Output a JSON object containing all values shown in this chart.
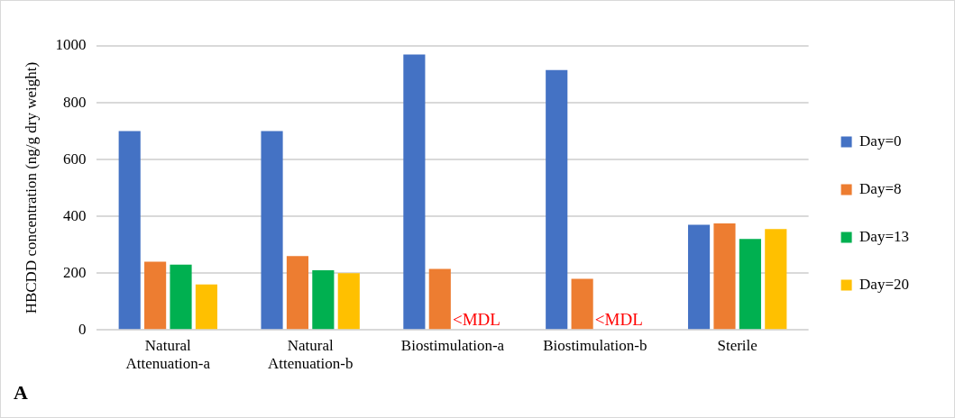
{
  "chart_data": {
    "type": "bar",
    "ylabel": "HBCDD concentration (ng/g dry weight)",
    "categories": [
      "Natural Attenuation-a",
      "Natural Attenuation-b",
      "Biostimulation-a",
      "Biostimulation-b",
      "Sterile"
    ],
    "series": [
      {
        "name": "Day=0",
        "color": "#4472c4",
        "values": [
          700,
          700,
          970,
          915,
          370
        ]
      },
      {
        "name": "Day=8",
        "color": "#ed7d31",
        "values": [
          240,
          260,
          215,
          180,
          375
        ]
      },
      {
        "name": "Day=13",
        "color": "#00b050",
        "values": [
          230,
          210,
          null,
          null,
          320
        ]
      },
      {
        "name": "Day=20",
        "color": "#ffc000",
        "values": [
          160,
          200,
          null,
          null,
          355
        ]
      }
    ],
    "ylim": [
      0,
      1000
    ],
    "yticks": [
      0,
      200,
      400,
      600,
      800,
      1000
    ],
    "grid": "y",
    "legend": "right",
    "annotations": [
      {
        "text": "<MDL",
        "x": "Biostimulation-a",
        "y": 0
      },
      {
        "text": "<MDL",
        "x": "Biostimulation-b",
        "y": 0
      },
      "A"
    ]
  }
}
